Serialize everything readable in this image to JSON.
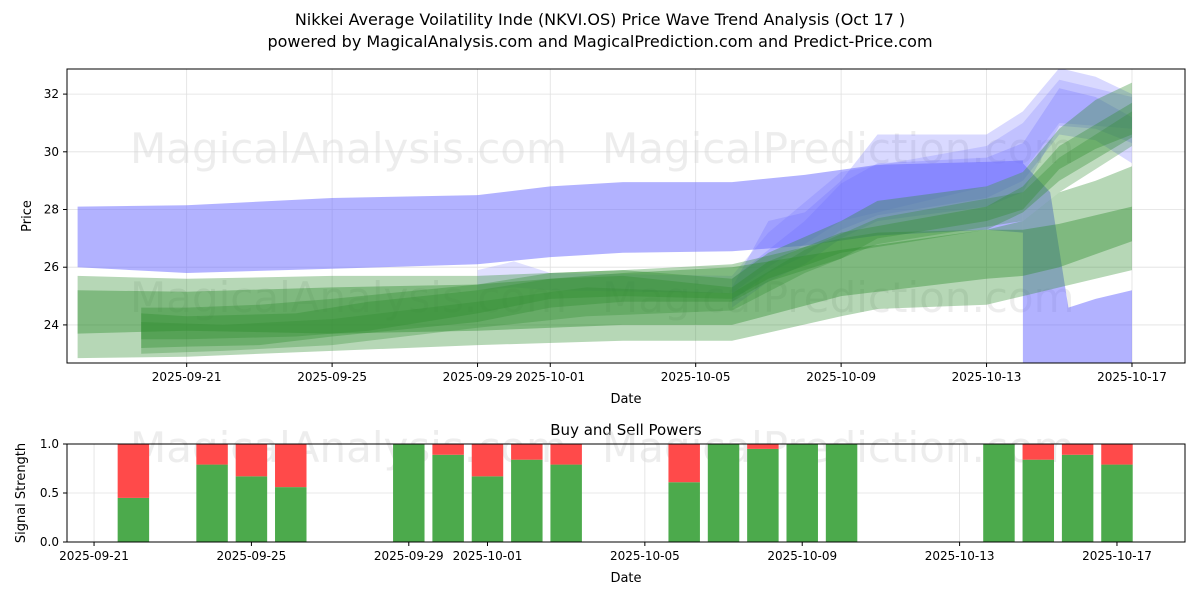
{
  "header": {
    "title": "Nikkei Average Voilatility Inde (NKVI.OS) Price Wave Trend Analysis (Oct 17 )",
    "subtitle": "powered by MagicalAnalysis.com and MagicalPrediction.com and Predict-Price.com"
  },
  "watermarks": [
    "MagicalAnalysis.com",
    "MagicalPrediction.com"
  ],
  "colors": {
    "blue_band": "#6666ff",
    "green_band": "#2e8b2e",
    "buy": "#4caa4c",
    "sell": "#ff4a4a",
    "grid": "#e0e0e0"
  },
  "chart_data": [
    {
      "type": "area",
      "title": "",
      "xlabel": "Date",
      "ylabel": "Price",
      "xlim": [
        "2025-09-17T17:00",
        "2025-10-18T11:00"
      ],
      "ylim": [
        22.68,
        32.87
      ],
      "grid": true,
      "x_ticks": [
        "2025-09-21",
        "2025-09-25",
        "2025-09-29",
        "2025-10-01",
        "2025-10-05",
        "2025-10-09",
        "2025-10-13",
        "2025-10-17"
      ],
      "y_ticks": [
        24,
        26,
        28,
        30,
        32
      ],
      "series": [
        {
          "name": "blue-band-main",
          "color": "blue",
          "opacity": 0.5,
          "points": [
            {
              "x": "2025-09-18",
              "low": 26.0,
              "high": 28.1
            },
            {
              "x": "2025-09-21",
              "low": 25.8,
              "high": 28.15
            },
            {
              "x": "2025-09-25",
              "low": 25.95,
              "high": 28.4
            },
            {
              "x": "2025-09-29",
              "low": 26.1,
              "high": 28.5
            },
            {
              "x": "2025-10-01",
              "low": 26.35,
              "high": 28.8
            },
            {
              "x": "2025-10-03",
              "low": 26.5,
              "high": 28.95
            },
            {
              "x": "2025-10-06",
              "low": 26.55,
              "high": 28.95
            },
            {
              "x": "2025-10-08",
              "low": 26.75,
              "high": 29.2
            },
            {
              "x": "2025-10-10",
              "low": 27.1,
              "high": 29.55
            },
            {
              "x": "2025-10-13",
              "low": 27.3,
              "high": 29.65
            },
            {
              "x": "2025-10-14",
              "low": 27.2,
              "high": 29.7
            }
          ]
        },
        {
          "name": "blue-band-drop",
          "color": "blue",
          "opacity": 0.5,
          "points": [
            {
              "x": "2025-10-14",
              "low": 22.68,
              "high": 29.6
            },
            {
              "x": "2025-10-14T18:00",
              "low": 22.68,
              "high": 28.6
            },
            {
              "x": "2025-10-15T06:00",
              "low": 22.68,
              "high": 24.6
            },
            {
              "x": "2025-10-16",
              "low": 22.68,
              "high": 24.9
            },
            {
              "x": "2025-10-17",
              "low": 22.68,
              "high": 25.2
            }
          ]
        },
        {
          "name": "blue-wave-rise-1",
          "color": "blue",
          "opacity": 0.25,
          "points": [
            {
              "x": "2025-10-06",
              "low": 24.6,
              "high": 25.3
            },
            {
              "x": "2025-10-07",
              "low": 25.5,
              "high": 27.6
            },
            {
              "x": "2025-10-08",
              "low": 26.1,
              "high": 27.9
            },
            {
              "x": "2025-10-09",
              "low": 27.0,
              "high": 29.0
            },
            {
              "x": "2025-10-10",
              "low": 27.6,
              "high": 30.6
            },
            {
              "x": "2025-10-13",
              "low": 28.1,
              "high": 30.6
            },
            {
              "x": "2025-10-14",
              "low": 28.6,
              "high": 31.4
            },
            {
              "x": "2025-10-15",
              "low": 30.9,
              "high": 32.9
            },
            {
              "x": "2025-10-16",
              "low": 30.8,
              "high": 32.6
            },
            {
              "x": "2025-10-17",
              "low": 30.3,
              "high": 32.0
            }
          ]
        },
        {
          "name": "blue-wave-rise-2",
          "color": "blue",
          "opacity": 0.25,
          "points": [
            {
              "x": "2025-10-06",
              "low": 24.8,
              "high": 25.6
            },
            {
              "x": "2025-10-07",
              "low": 25.8,
              "high": 26.6
            },
            {
              "x": "2025-10-08",
              "low": 26.4,
              "high": 27.6
            },
            {
              "x": "2025-10-09",
              "low": 27.3,
              "high": 28.9
            },
            {
              "x": "2025-10-10",
              "low": 27.8,
              "high": 29.6
            },
            {
              "x": "2025-10-13",
              "low": 28.4,
              "high": 29.8
            },
            {
              "x": "2025-10-14",
              "low": 29.0,
              "high": 30.3
            },
            {
              "x": "2025-10-15",
              "low": 30.6,
              "high": 32.2
            },
            {
              "x": "2025-10-16",
              "low": 30.4,
              "high": 31.9
            },
            {
              "x": "2025-10-17",
              "low": 29.6,
              "high": 31.2
            }
          ]
        },
        {
          "name": "blue-wave-rise-3",
          "color": "blue",
          "opacity": 0.2,
          "points": [
            {
              "x": "2025-09-29",
              "low": 25.2,
              "high": 25.9
            },
            {
              "x": "2025-09-30",
              "low": 25.3,
              "high": 26.2
            },
            {
              "x": "2025-10-01",
              "low": 25.2,
              "high": 25.8
            },
            {
              "x": "2025-10-06",
              "low": 25.1,
              "high": 25.7
            },
            {
              "x": "2025-10-07",
              "low": 26.0,
              "high": 27.2
            },
            {
              "x": "2025-10-09",
              "low": 27.6,
              "high": 29.3
            },
            {
              "x": "2025-10-13",
              "low": 28.8,
              "high": 30.2
            },
            {
              "x": "2025-10-14",
              "low": 29.3,
              "high": 31.0
            },
            {
              "x": "2025-10-15",
              "low": 31.0,
              "high": 32.5
            },
            {
              "x": "2025-10-17",
              "low": 30.8,
              "high": 31.9
            }
          ]
        },
        {
          "name": "green-band-outer",
          "color": "green",
          "opacity": 0.35,
          "points": [
            {
              "x": "2025-09-18",
              "low": 22.85,
              "high": 25.7
            },
            {
              "x": "2025-09-21",
              "low": 22.9,
              "high": 25.6
            },
            {
              "x": "2025-09-25",
              "low": 23.1,
              "high": 25.7
            },
            {
              "x": "2025-09-29",
              "low": 23.3,
              "high": 25.7
            },
            {
              "x": "2025-10-03",
              "low": 23.45,
              "high": 25.9
            },
            {
              "x": "2025-10-06",
              "low": 23.45,
              "high": 26.1
            },
            {
              "x": "2025-10-09",
              "low": 24.3,
              "high": 27.0
            },
            {
              "x": "2025-10-10",
              "low": 24.55,
              "high": 27.2
            },
            {
              "x": "2025-10-13",
              "low": 24.7,
              "high": 27.3
            },
            {
              "x": "2025-10-14",
              "low": 25.0,
              "high": 27.6
            },
            {
              "x": "2025-10-15",
              "low": 25.3,
              "high": 28.6
            },
            {
              "x": "2025-10-16",
              "low": 25.6,
              "high": 29.0
            },
            {
              "x": "2025-10-17",
              "low": 25.9,
              "high": 29.5
            }
          ]
        },
        {
          "name": "green-band-mid",
          "color": "green",
          "opacity": 0.4,
          "points": [
            {
              "x": "2025-09-18",
              "low": 23.7,
              "high": 25.2
            },
            {
              "x": "2025-09-21",
              "low": 23.8,
              "high": 25.15
            },
            {
              "x": "2025-09-25",
              "low": 23.7,
              "high": 25.3
            },
            {
              "x": "2025-09-29",
              "low": 23.8,
              "high": 25.4
            },
            {
              "x": "2025-10-03",
              "low": 24.0,
              "high": 25.8
            },
            {
              "x": "2025-10-06",
              "low": 24.0,
              "high": 26.0
            },
            {
              "x": "2025-10-09",
              "low": 25.0,
              "high": 26.6
            },
            {
              "x": "2025-10-13",
              "low": 25.6,
              "high": 27.3
            },
            {
              "x": "2025-10-14",
              "low": 25.7,
              "high": 27.3
            },
            {
              "x": "2025-10-15",
              "low": 26.0,
              "high": 27.5
            },
            {
              "x": "2025-10-17",
              "low": 26.9,
              "high": 28.1
            }
          ]
        },
        {
          "name": "green-wave-core-1",
          "color": "green",
          "opacity": 0.35,
          "points": [
            {
              "x": "2025-09-19T18:00",
              "low": 23.2,
              "high": 24.6
            },
            {
              "x": "2025-09-21",
              "low": 23.25,
              "high": 24.6
            },
            {
              "x": "2025-09-23",
              "low": 23.3,
              "high": 24.7
            },
            {
              "x": "2025-09-25",
              "low": 23.6,
              "high": 24.9
            },
            {
              "x": "2025-09-29",
              "low": 24.1,
              "high": 25.4
            },
            {
              "x": "2025-10-01",
              "low": 24.6,
              "high": 25.8
            },
            {
              "x": "2025-10-03",
              "low": 24.8,
              "high": 25.9
            },
            {
              "x": "2025-10-06",
              "low": 24.8,
              "high": 25.6
            },
            {
              "x": "2025-10-07",
              "low": 25.5,
              "high": 26.5
            },
            {
              "x": "2025-10-09",
              "low": 26.3,
              "high": 27.6
            },
            {
              "x": "2025-10-10",
              "low": 27.0,
              "high": 28.3
            },
            {
              "x": "2025-10-13",
              "low": 27.6,
              "high": 28.8
            },
            {
              "x": "2025-10-14",
              "low": 28.0,
              "high": 29.3
            },
            {
              "x": "2025-10-15",
              "low": 29.4,
              "high": 30.8
            },
            {
              "x": "2025-10-16",
              "low": 30.1,
              "high": 31.8
            },
            {
              "x": "2025-10-17",
              "low": 30.6,
              "high": 32.4
            }
          ]
        },
        {
          "name": "green-wave-core-2",
          "color": "green",
          "opacity": 0.35,
          "points": [
            {
              "x": "2025-09-19T18:00",
              "low": 23.5,
              "high": 24.4
            },
            {
              "x": "2025-09-21",
              "low": 23.5,
              "high": 24.3
            },
            {
              "x": "2025-09-24",
              "low": 23.6,
              "high": 24.4
            },
            {
              "x": "2025-09-26",
              "low": 23.8,
              "high": 24.8
            },
            {
              "x": "2025-09-29",
              "low": 24.4,
              "high": 25.2
            },
            {
              "x": "2025-10-01",
              "low": 24.9,
              "high": 25.6
            },
            {
              "x": "2025-10-03",
              "low": 25.0,
              "high": 25.7
            },
            {
              "x": "2025-10-06",
              "low": 24.9,
              "high": 25.3
            },
            {
              "x": "2025-10-07",
              "low": 25.6,
              "high": 26.2
            },
            {
              "x": "2025-10-09",
              "low": 26.5,
              "high": 27.2
            },
            {
              "x": "2025-10-13",
              "low": 27.3,
              "high": 28.1
            },
            {
              "x": "2025-10-14",
              "low": 27.9,
              "high": 28.8
            },
            {
              "x": "2025-10-15",
              "low": 29.0,
              "high": 30.2
            },
            {
              "x": "2025-10-17",
              "low": 30.5,
              "high": 31.7
            }
          ]
        },
        {
          "name": "green-wave-core-3",
          "color": "green",
          "opacity": 0.3,
          "points": [
            {
              "x": "2025-09-19T18:00",
              "low": 23.0,
              "high": 24.1
            },
            {
              "x": "2025-09-22",
              "low": 23.1,
              "high": 24.0
            },
            {
              "x": "2025-09-25",
              "low": 23.3,
              "high": 24.2
            },
            {
              "x": "2025-09-29",
              "low": 23.9,
              "high": 24.8
            },
            {
              "x": "2025-10-02",
              "low": 24.3,
              "high": 25.3
            },
            {
              "x": "2025-10-06",
              "low": 24.5,
              "high": 25.1
            },
            {
              "x": "2025-10-08",
              "low": 25.8,
              "high": 26.6
            },
            {
              "x": "2025-10-10",
              "low": 26.8,
              "high": 27.7
            },
            {
              "x": "2025-10-14",
              "low": 27.6,
              "high": 28.6
            },
            {
              "x": "2025-10-15",
              "low": 28.6,
              "high": 29.8
            },
            {
              "x": "2025-10-17",
              "low": 30.2,
              "high": 31.4
            }
          ]
        }
      ]
    },
    {
      "type": "bar",
      "title": "Buy and Sell Powers",
      "xlabel": "Date",
      "ylabel": "Signal Strength",
      "xlim": [
        "2025-09-20T07:30",
        "2025-10-18T17:30"
      ],
      "ylim": [
        0,
        1
      ],
      "grid": true,
      "x_ticks": [
        "2025-09-21",
        "2025-09-25",
        "2025-09-29",
        "2025-10-01",
        "2025-10-05",
        "2025-10-09",
        "2025-10-13",
        "2025-10-17"
      ],
      "y_ticks": [
        "0.0",
        "0.5",
        "1.0"
      ],
      "stacked": true,
      "series_names": [
        "Buy",
        "Sell"
      ],
      "categories": [
        "2025-09-22",
        "2025-09-24",
        "2025-09-25",
        "2025-09-26",
        "2025-09-29",
        "2025-09-30",
        "2025-10-01",
        "2025-10-02",
        "2025-10-03",
        "2025-10-06",
        "2025-10-07",
        "2025-10-08",
        "2025-10-09",
        "2025-10-10",
        "2025-10-14",
        "2025-10-15",
        "2025-10-16",
        "2025-10-17"
      ],
      "buy": [
        0.45,
        0.79,
        0.67,
        0.56,
        1.0,
        0.89,
        0.67,
        0.84,
        0.79,
        0.61,
        1.0,
        0.95,
        1.0,
        1.0,
        1.0,
        0.84,
        0.89,
        0.79
      ],
      "sell": [
        0.55,
        0.21,
        0.33,
        0.44,
        0.0,
        0.11,
        0.33,
        0.16,
        0.21,
        0.39,
        0.0,
        0.05,
        0.0,
        0.0,
        0.0,
        0.16,
        0.11,
        0.21
      ]
    }
  ]
}
